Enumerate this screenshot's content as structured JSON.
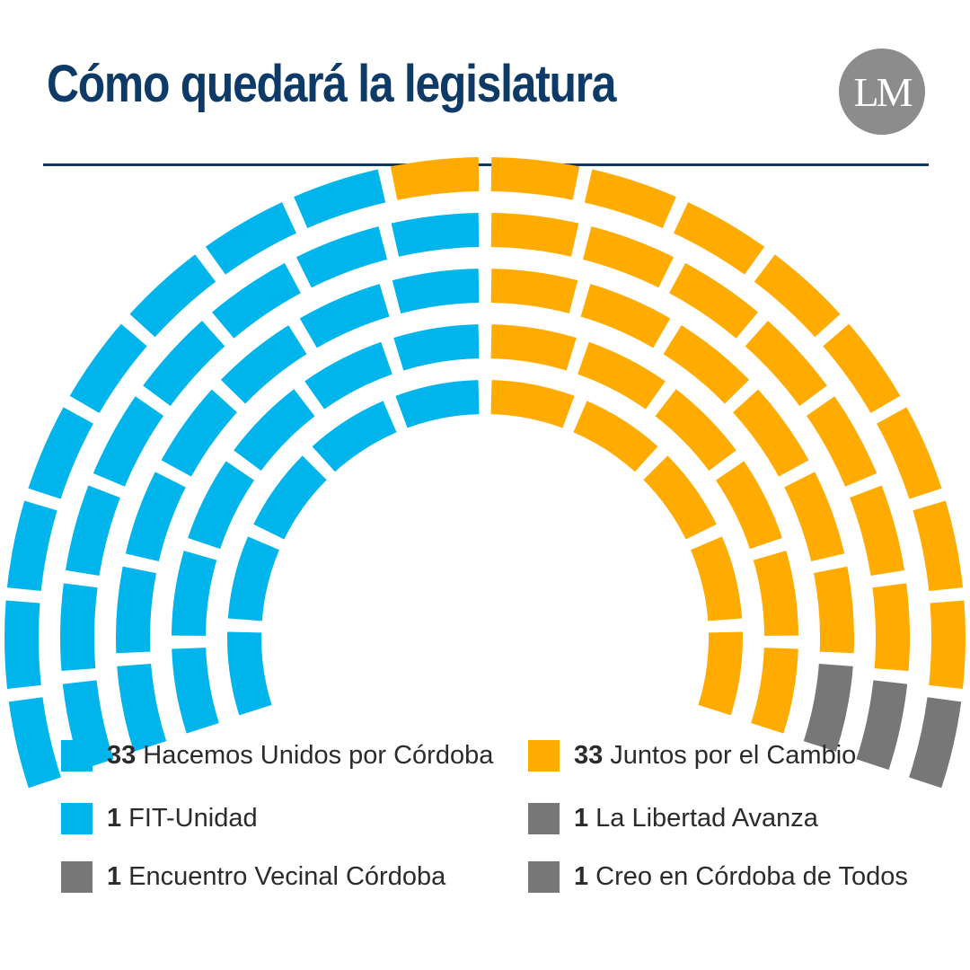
{
  "header": {
    "title": "Cómo quedará la legislatura",
    "logo_text": "LM"
  },
  "colors": {
    "title": "#0d3a66",
    "hacemos": "#00b5ec",
    "juntos": "#ffab00",
    "other": "#777777"
  },
  "chart_data": {
    "type": "parliament",
    "total_seats": 70,
    "rows": 5,
    "series": [
      {
        "name": "Hacemos Unidos por Córdoba",
        "seats": 33,
        "color": "#00b5ec"
      },
      {
        "name": "FIT-Unidad",
        "seats": 1,
        "color": "#00b5ec"
      },
      {
        "name": "Juntos por el Cambio",
        "seats": 33,
        "color": "#ffab00"
      },
      {
        "name": "Encuentro Vecinal Córdoba",
        "seats": 1,
        "color": "#777777"
      },
      {
        "name": "La Libertad Avanza",
        "seats": 1,
        "color": "#777777"
      },
      {
        "name": "Creo en Córdoba de Todos",
        "seats": 1,
        "color": "#777777"
      }
    ]
  },
  "legend": [
    {
      "count": "33",
      "label": "Hacemos Unidos por Córdoba",
      "color": "#00b5ec"
    },
    {
      "count": "33",
      "label": "Juntos por el Cambio",
      "color": "#ffab00"
    },
    {
      "count": "1",
      "label": "FIT-Unidad",
      "color": "#00b5ec"
    },
    {
      "count": "1",
      "label": "La Libertad Avanza",
      "color": "#777777"
    },
    {
      "count": "1",
      "label": "Encuentro Vecinal Córdoba",
      "color": "#777777"
    },
    {
      "count": "1",
      "label": "Creo en Córdoba de Todos",
      "color": "#777777"
    }
  ]
}
